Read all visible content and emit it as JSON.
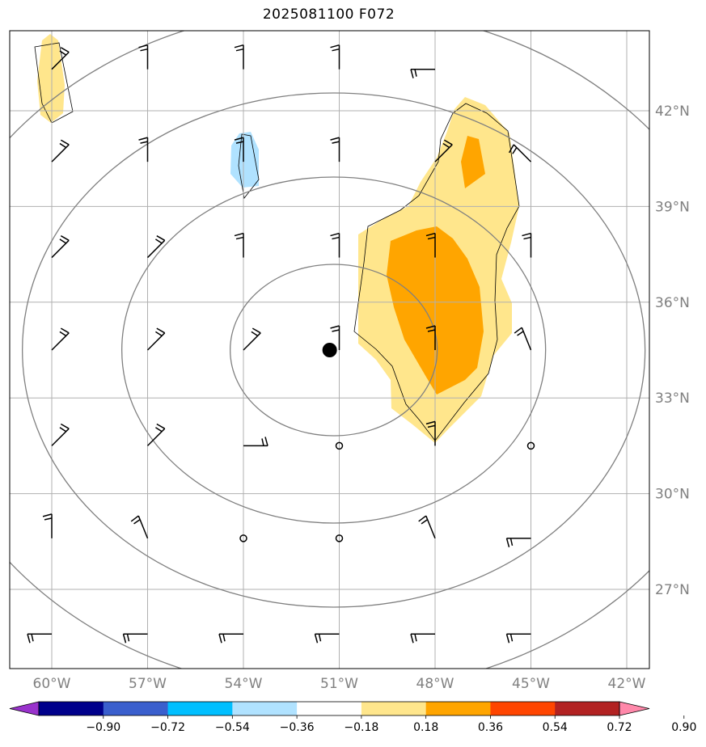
{
  "title": "2025081100 F072",
  "longitude_ticks": [
    {
      "value": -60,
      "label": "60°W"
    },
    {
      "value": -57,
      "label": "57°W"
    },
    {
      "value": -54,
      "label": "54°W"
    },
    {
      "value": -51,
      "label": "51°W"
    },
    {
      "value": -48,
      "label": "48°W"
    },
    {
      "value": -45,
      "label": "45°W"
    },
    {
      "value": -42,
      "label": "42°W"
    }
  ],
  "latitude_ticks": [
    {
      "value": 42,
      "label": "42°N"
    },
    {
      "value": 39,
      "label": "39°N"
    },
    {
      "value": 36,
      "label": "36°N"
    },
    {
      "value": 33,
      "label": "33°N"
    },
    {
      "value": 30,
      "label": "30°N"
    },
    {
      "value": 27,
      "label": "27°N"
    }
  ],
  "colorbar": {
    "labels": [
      "−0.90",
      "−0.72",
      "−0.54",
      "−0.36",
      "−0.18",
      "0.18",
      "0.36",
      "0.54",
      "0.72",
      "0.90"
    ],
    "colors": [
      "#9932cc",
      "#00008b",
      "#3a5fcd",
      "#00bfff",
      "#b0e2ff",
      "#ffffff",
      "#ffe68c",
      "#ffa500",
      "#ff4500",
      "#b22222",
      "#ff88aa"
    ]
  },
  "storm_center": {
    "lon": -51.3,
    "lat": 34.5
  },
  "range_rings": "concentric distance circles around storm center",
  "wind_barbs": [
    {
      "lon": -60,
      "lat": 43.3,
      "dir": "NE"
    },
    {
      "lon": -57,
      "lat": 43.3,
      "dir": "N"
    },
    {
      "lon": -54,
      "lat": 43.3,
      "dir": "N"
    },
    {
      "lon": -51,
      "lat": 43.3,
      "dir": "N"
    },
    {
      "lon": -48,
      "lat": 43.3,
      "dir": "W"
    },
    {
      "lon": -60,
      "lat": 40.4,
      "dir": "NE"
    },
    {
      "lon": -57,
      "lat": 40.4,
      "dir": "N"
    },
    {
      "lon": -54,
      "lat": 40.4,
      "dir": "N"
    },
    {
      "lon": -51,
      "lat": 40.4,
      "dir": "N"
    },
    {
      "lon": -48,
      "lat": 40.4,
      "dir": "NE"
    },
    {
      "lon": -45,
      "lat": 40.4,
      "dir": "NW"
    },
    {
      "lon": -60,
      "lat": 37.4,
      "dir": "NE"
    },
    {
      "lon": -57,
      "lat": 37.4,
      "dir": "NE"
    },
    {
      "lon": -54,
      "lat": 37.4,
      "dir": "N"
    },
    {
      "lon": -51,
      "lat": 37.4,
      "dir": "N"
    },
    {
      "lon": -48,
      "lat": 37.4,
      "dir": "N"
    },
    {
      "lon": -45,
      "lat": 37.4,
      "dir": "N"
    },
    {
      "lon": -60,
      "lat": 34.5,
      "dir": "NE"
    },
    {
      "lon": -57,
      "lat": 34.5,
      "dir": "NE"
    },
    {
      "lon": -54,
      "lat": 34.5,
      "dir": "NE"
    },
    {
      "lon": -51,
      "lat": 34.5,
      "dir": "N"
    },
    {
      "lon": -48,
      "lat": 34.5,
      "dir": "N"
    },
    {
      "lon": -45,
      "lat": 34.5,
      "dir": "NNW"
    },
    {
      "lon": -60,
      "lat": 31.5,
      "dir": "NE"
    },
    {
      "lon": -57,
      "lat": 31.5,
      "dir": "NE"
    },
    {
      "lon": -54,
      "lat": 31.5,
      "dir": "E"
    },
    {
      "lon": -51,
      "lat": 31.5,
      "dir": "calm"
    },
    {
      "lon": -48,
      "lat": 31.5,
      "dir": "N"
    },
    {
      "lon": -45,
      "lat": 31.5,
      "dir": "calm"
    },
    {
      "lon": -60,
      "lat": 28.6,
      "dir": "N"
    },
    {
      "lon": -57,
      "lat": 28.6,
      "dir": "NNW"
    },
    {
      "lon": -54,
      "lat": 28.6,
      "dir": "calm"
    },
    {
      "lon": -51,
      "lat": 28.6,
      "dir": "calm"
    },
    {
      "lon": -48,
      "lat": 28.6,
      "dir": "NNW"
    },
    {
      "lon": -45,
      "lat": 28.6,
      "dir": "W"
    },
    {
      "lon": -60,
      "lat": 25.6,
      "dir": "W"
    },
    {
      "lon": -57,
      "lat": 25.6,
      "dir": "W"
    },
    {
      "lon": -54,
      "lat": 25.6,
      "dir": "W"
    },
    {
      "lon": -51,
      "lat": 25.6,
      "dir": "W"
    },
    {
      "lon": -48,
      "lat": 25.6,
      "dir": "W"
    },
    {
      "lon": -45,
      "lat": 25.6,
      "dir": "W"
    }
  ]
}
